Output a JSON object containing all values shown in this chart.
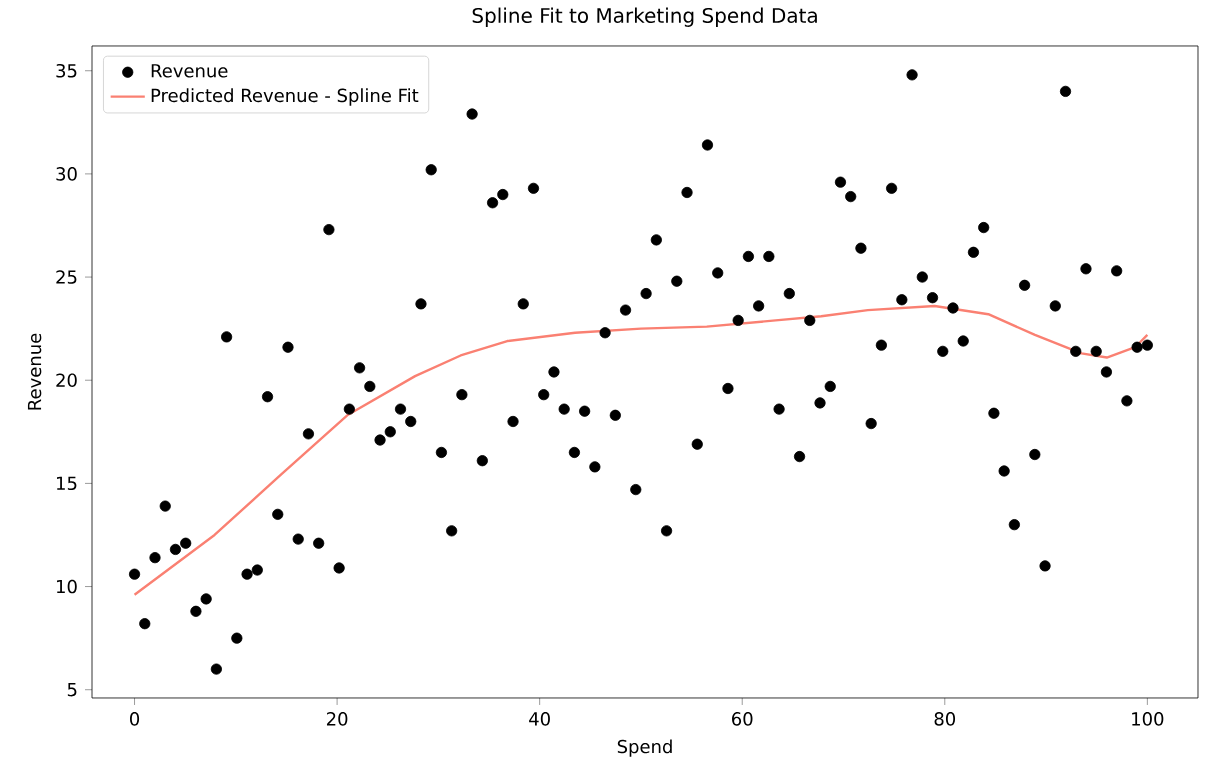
{
  "chart_data": {
    "type": "scatter",
    "title": "Spline Fit to Marketing Spend Data",
    "xlabel": "Spend",
    "ylabel": "Revenue",
    "xlim": [
      -4.2,
      105
    ],
    "ylim": [
      4.6,
      36.2
    ],
    "xticks": [
      0,
      20,
      40,
      60,
      80,
      100
    ],
    "yticks": [
      5,
      10,
      15,
      20,
      25,
      30,
      35
    ],
    "legend": "top left",
    "grid": false,
    "series": [
      {
        "name": "Revenue",
        "marker": "circle",
        "color": "#000000",
        "x": [
          0,
          1.01,
          2.02,
          3.03,
          4.04,
          5.05,
          6.06,
          7.07,
          8.08,
          9.09,
          10.1,
          11.11,
          12.12,
          13.13,
          14.14,
          15.15,
          16.16,
          17.17,
          18.18,
          19.19,
          20.2,
          21.21,
          22.22,
          23.23,
          24.24,
          25.25,
          26.26,
          27.27,
          28.28,
          29.29,
          30.3,
          31.31,
          32.32,
          33.33,
          34.34,
          35.35,
          36.36,
          37.37,
          38.38,
          39.39,
          40.4,
          41.41,
          42.42,
          43.43,
          44.44,
          45.45,
          46.46,
          47.47,
          48.48,
          49.49,
          50.51,
          51.52,
          52.53,
          53.54,
          54.55,
          55.56,
          56.57,
          57.58,
          58.59,
          59.6,
          60.61,
          61.62,
          62.63,
          63.64,
          64.65,
          65.66,
          66.67,
          67.68,
          68.69,
          69.7,
          70.71,
          71.72,
          72.73,
          73.74,
          74.75,
          75.76,
          76.77,
          77.78,
          78.79,
          79.8,
          80.81,
          81.82,
          82.83,
          83.84,
          84.85,
          85.86,
          86.87,
          87.88,
          88.89,
          89.9,
          90.91,
          91.92,
          92.93,
          93.94,
          94.95,
          95.96,
          96.97,
          97.98,
          98.99,
          100
        ],
        "values": [
          10.6,
          8.2,
          11.4,
          13.9,
          11.8,
          12.1,
          8.8,
          9.4,
          6.0,
          22.1,
          7.5,
          10.6,
          10.8,
          19.2,
          13.5,
          21.6,
          12.3,
          17.4,
          12.1,
          27.3,
          10.9,
          18.6,
          20.6,
          19.7,
          17.1,
          17.5,
          18.6,
          18.0,
          23.7,
          30.2,
          16.5,
          12.7,
          19.3,
          32.9,
          16.1,
          28.6,
          29.0,
          18.0,
          23.7,
          29.3,
          19.3,
          20.4,
          18.6,
          16.5,
          18.5,
          15.8,
          22.3,
          18.3,
          23.4,
          14.7,
          24.2,
          26.8,
          12.7,
          24.8,
          29.1,
          16.9,
          31.4,
          25.2,
          19.6,
          22.9,
          26.0,
          23.6,
          26.0,
          18.6,
          24.2,
          16.3,
          22.9,
          18.9,
          19.7,
          29.6,
          28.9,
          26.4,
          17.9,
          21.7,
          29.3,
          23.9,
          34.8,
          25.0,
          24.0,
          21.4,
          23.5,
          21.9,
          26.2,
          27.4,
          18.4,
          15.6,
          13.0,
          24.6,
          16.4,
          11.0,
          23.6,
          34.0,
          21.4,
          25.4,
          21.4,
          20.4,
          25.3,
          19.0,
          21.6,
          21.7
        ]
      },
      {
        "name": "Predicted Revenue - Spline Fit",
        "type": "line",
        "marker": "none",
        "line_style": "solid",
        "color": "#fa8072",
        "x": [
          0,
          7.9,
          14.4,
          21,
          27.7,
          32.2,
          36.8,
          43.5,
          50,
          56.5,
          63.3,
          67.8,
          72.4,
          79,
          84.3,
          88.9,
          93.5,
          96,
          98.8,
          100
        ],
        "values": [
          9.6,
          12.5,
          15.4,
          18.3,
          20.2,
          21.2,
          21.9,
          22.3,
          22.5,
          22.6,
          22.9,
          23.1,
          23.4,
          23.6,
          23.2,
          22.2,
          21.3,
          21.1,
          21.6,
          22.2
        ]
      }
    ]
  }
}
